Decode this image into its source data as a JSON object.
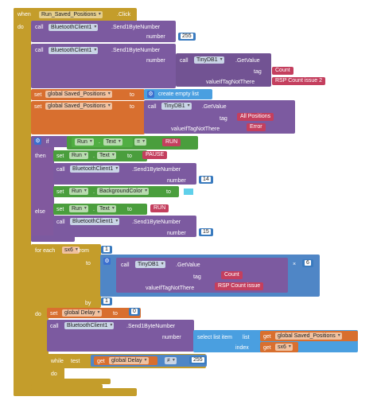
{
  "event": {
    "when": "when",
    "component": "Run_Saved_Positions",
    "event_name": ".Click",
    "do": "do"
  },
  "call": "call",
  "send": {
    "component": "BluetoothClient1",
    "method": ".Send1ByteNumber",
    "param": "number"
  },
  "block1": {
    "number": "255"
  },
  "block2": {
    "db": "TinyDB1",
    "method": ".GetValue",
    "tag_label": "tag",
    "tag_value": "Count",
    "vitn_label": "valueIfTagNotThere",
    "vitn_value": "RSP Count issue 2"
  },
  "set_positions": {
    "set": "set",
    "var": "global Saved_Positions",
    "to": "to",
    "value": "create empty list"
  },
  "set_positions2": {
    "db": "TinyDB1",
    "method": ".GetValue",
    "tag_label": "tag",
    "tag_value": "All Positions",
    "vitn_label": "valueIfTagNotThere",
    "vitn_value": "Error"
  },
  "if_block": {
    "if": "if",
    "component": "Run",
    "prop": "Text",
    "op": "=",
    "value": "RUN",
    "then": "then",
    "else": "else"
  },
  "then": {
    "set": "set",
    "component": "Run",
    "prop": "Text",
    "to": "to",
    "value": "PAUSE",
    "number": "14",
    "bg_prop": "BackgroundColor",
    "bg_color": "#5fd0ea"
  },
  "else": {
    "set": "set",
    "component": "Run",
    "prop": "Text",
    "to": "to",
    "value": "RUN",
    "number": "15"
  },
  "foreach": {
    "label": "for each",
    "var": "sx6",
    "from": "from",
    "from_value": "1",
    "to": "to",
    "by": "by",
    "by_value": "1",
    "times": "×",
    "times_value": "6",
    "db": "TinyDB1",
    "method": ".GetValue",
    "tag_label": "tag",
    "tag_value": "Count",
    "vitn_label": "valueIfTagNotThere",
    "vitn_value": "RSP Count issue"
  },
  "foreach_do": {
    "do": "do",
    "set": "set",
    "var": "global Delay",
    "to": "to",
    "delay_value": "0",
    "select": "select list item",
    "list": "list",
    "list_value": "global Saved_Positions",
    "index": "index",
    "index_value": "sx6",
    "get": "get",
    "while": "while",
    "test": "test",
    "delay_var": "global Delay",
    "neq": "≠",
    "neq_value": "255",
    "do_label": "do"
  }
}
